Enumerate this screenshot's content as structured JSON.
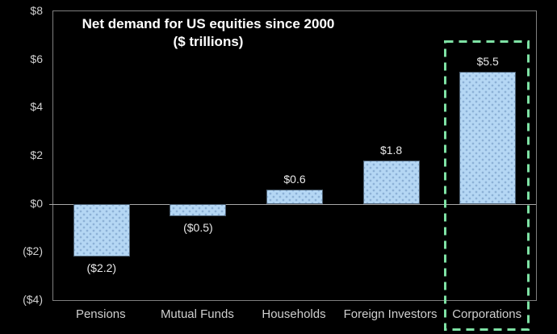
{
  "chart_data": {
    "type": "bar",
    "title": "Net demand for US equities since 2000",
    "subtitle": "($ trillions)",
    "categories": [
      "Pensions",
      "Mutual Funds",
      "Households",
      "Foreign Investors",
      "Corporations"
    ],
    "values": [
      -2.2,
      -0.5,
      0.6,
      1.8,
      5.5
    ],
    "value_labels": [
      "($2.2)",
      "($0.5)",
      "$0.6",
      "$1.8",
      "$5.5"
    ],
    "ylim": [
      -4,
      8
    ],
    "y_ticks": [
      {
        "value": 8,
        "label": "$8"
      },
      {
        "value": 6,
        "label": "$6"
      },
      {
        "value": 4,
        "label": "$4"
      },
      {
        "value": 2,
        "label": "$2"
      },
      {
        "value": 0,
        "label": "$0"
      },
      {
        "value": -2,
        "label": "($2)"
      },
      {
        "value": -4,
        "label": "($4)"
      }
    ],
    "grid": false,
    "legend": "none",
    "highlighted_category": "Corporations",
    "colors": {
      "background": "#000000",
      "bar_fill": "#B5D7F4",
      "bar_border": "#4E6173",
      "axis_border": "#7F7F7F",
      "zero_line": "#A9A9A9",
      "tick_text": "#CFCFCF",
      "category_text": "#CFCFCF",
      "value_text": "#E8E8E8",
      "title_text": "#FFFFFF",
      "highlight": "#7EE2A4"
    }
  }
}
